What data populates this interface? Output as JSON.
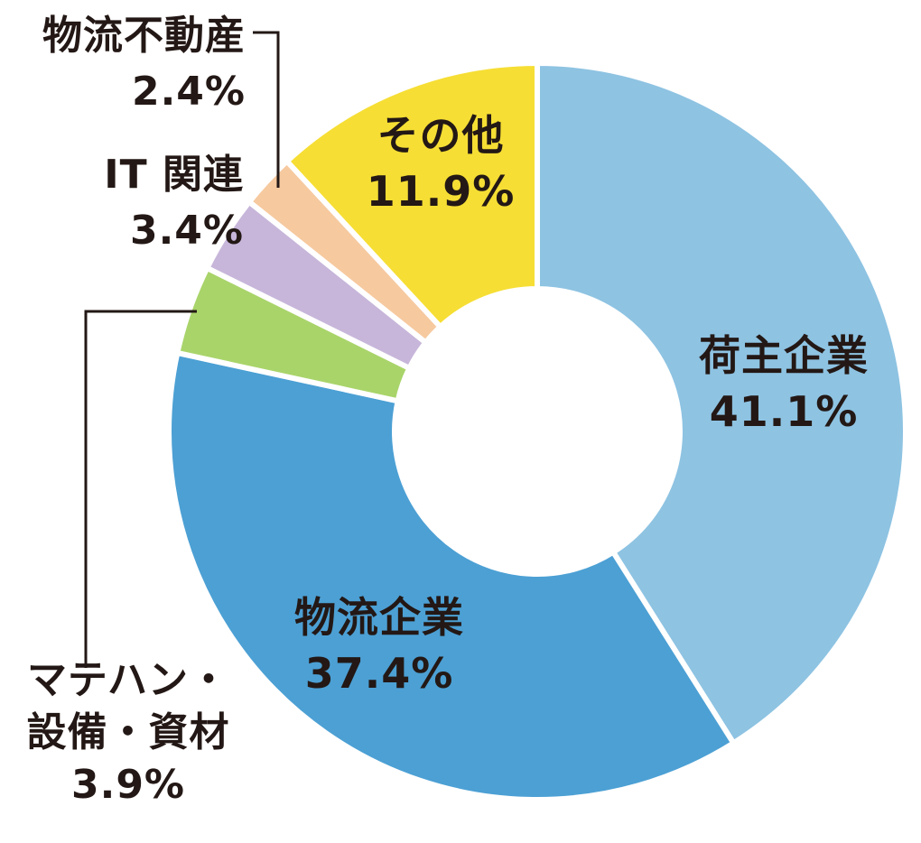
{
  "chart_data": {
    "type": "pie",
    "title": "",
    "donut": true,
    "categories": [
      "荷主企業",
      "物流企業",
      "マテハン・設備・資材",
      "IT関連",
      "物流不動産",
      "その他"
    ],
    "values": [
      41.1,
      37.4,
      3.9,
      3.4,
      2.4,
      11.9
    ],
    "value_labels": [
      "41.1%",
      "37.4%",
      "3.9%",
      "3.4%",
      "2.4%",
      "11.9%"
    ],
    "label_lines": [
      [
        "荷主企業"
      ],
      [
        "物流企業"
      ],
      [
        "マテハン・",
        "設備・資材"
      ],
      [
        "IT 関連"
      ],
      [
        "物流不動産"
      ],
      [
        "その他"
      ]
    ],
    "colors": [
      "#8ec3e2",
      "#4ca0d4",
      "#a9d46a",
      "#c7b6da",
      "#f6c99f",
      "#f6de34"
    ],
    "start": "12 o'clock",
    "direction": "clockwise",
    "legend": "none"
  }
}
